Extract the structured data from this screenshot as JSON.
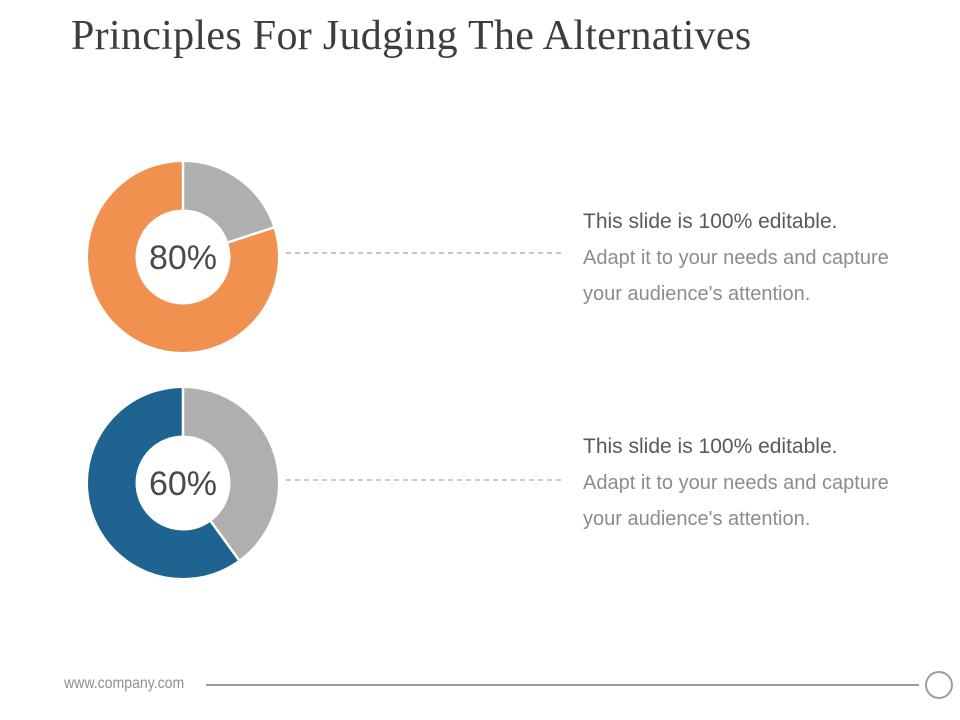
{
  "title": "Principles For Judging The Alternatives",
  "rows": [
    {
      "percent_label": "80%",
      "heading": "This slide is 100% editable.",
      "body_line1": "Adapt it to your needs and capture",
      "body_line2": "your audience's attention."
    },
    {
      "percent_label": "60%",
      "heading": "This slide is 100% editable.",
      "body_line1": "Adapt it to your needs and capture",
      "body_line2": "your audience's attention."
    }
  ],
  "footer": {
    "website": "www.company.com"
  },
  "colors": {
    "orange": "#F0914F",
    "blue": "#1F6391",
    "remainder_gray": "#AFAFAF",
    "title_text": "#3d3d3d",
    "heading_text": "#595959",
    "body_text": "#8c8c8c",
    "center_label_text": "#4a4a4a"
  },
  "chart_data": [
    {
      "type": "pie",
      "donut": true,
      "hole_ratio": 0.5,
      "start_angle_deg": 0,
      "direction": "clockwise",
      "center_label": "80%",
      "segments": [
        {
          "name": "remainder",
          "value": 20,
          "color": "#AFAFAF"
        },
        {
          "name": "value",
          "value": 80,
          "color": "#F0914F"
        }
      ],
      "legend": "none",
      "title": ""
    },
    {
      "type": "pie",
      "donut": true,
      "hole_ratio": 0.5,
      "start_angle_deg": 0,
      "direction": "clockwise",
      "center_label": "60%",
      "segments": [
        {
          "name": "remainder",
          "value": 40,
          "color": "#AFAFAF"
        },
        {
          "name": "value",
          "value": 60,
          "color": "#1F6391"
        }
      ],
      "legend": "none",
      "title": ""
    }
  ]
}
